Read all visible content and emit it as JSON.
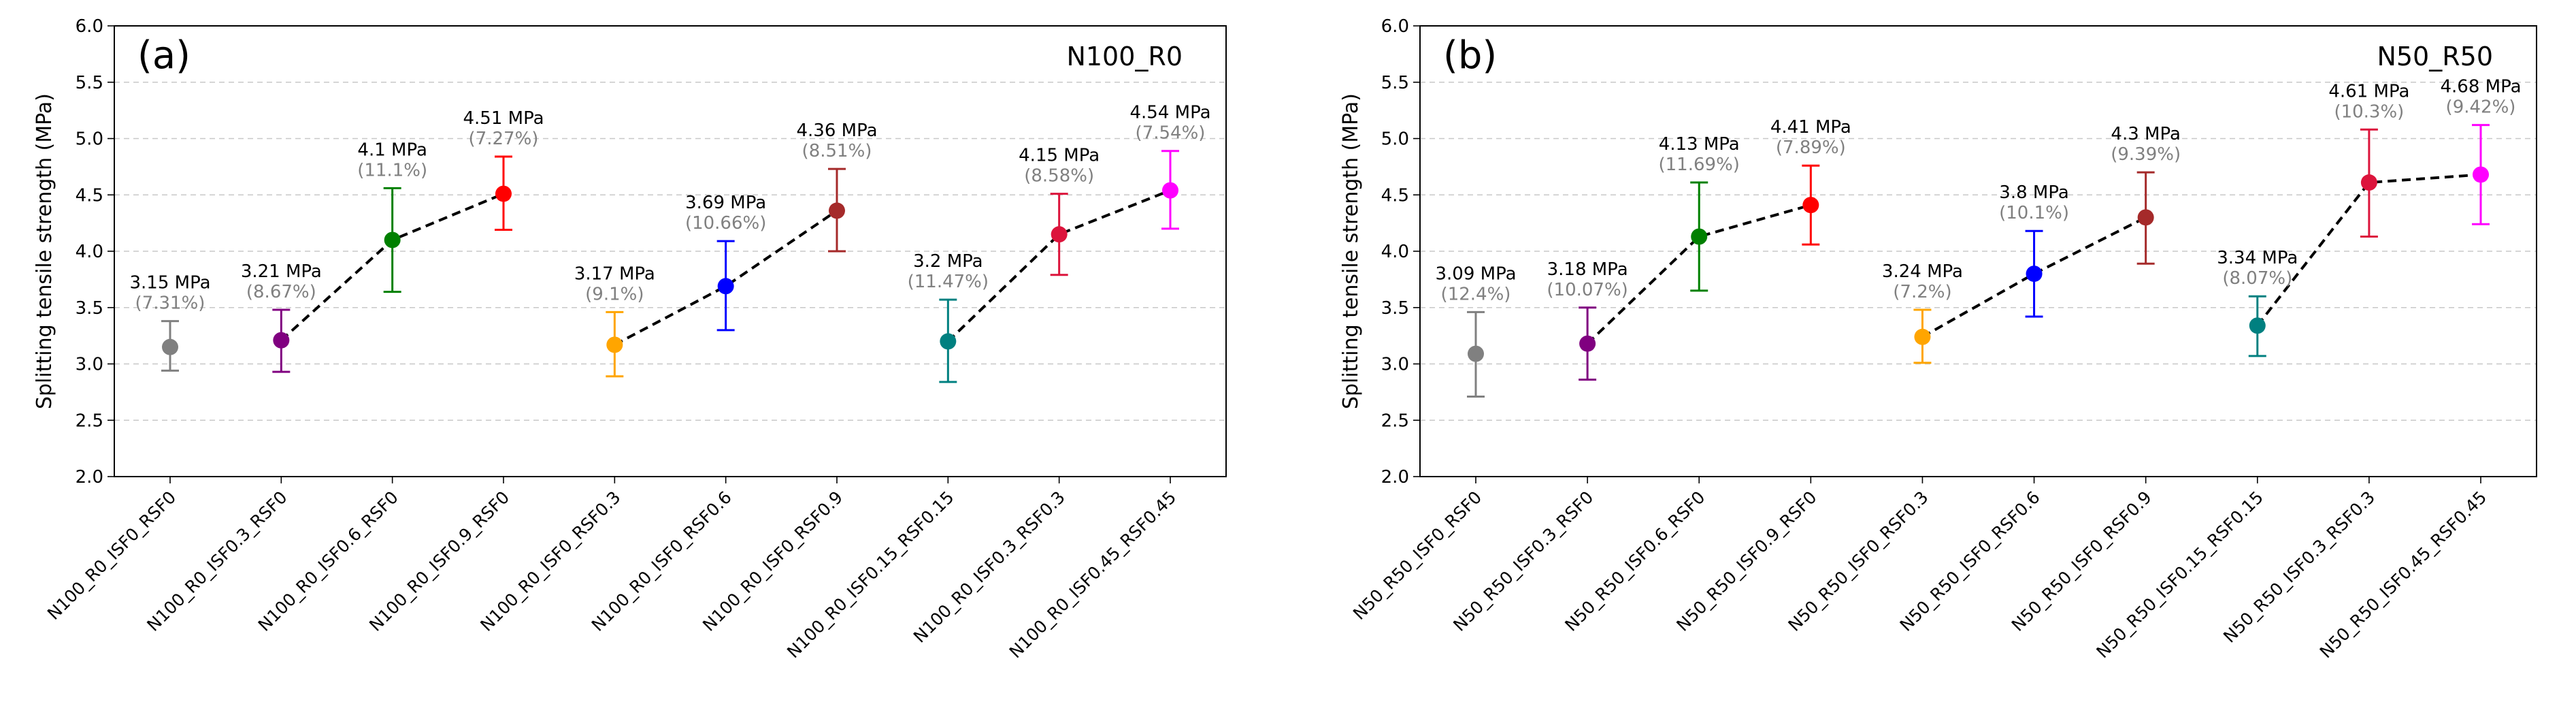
{
  "chart_data": [
    {
      "type": "scatter",
      "panel_label": "(a)",
      "corner_label": "N100_R0",
      "title": "",
      "xlabel": "",
      "ylabel": "Splitting tensile strength (MPa)",
      "ylim": [
        2.0,
        6.0
      ],
      "yticks": [
        "2.0",
        "2.5",
        "3.0",
        "3.5",
        "4.0",
        "4.5",
        "5.0",
        "5.5",
        "6.0"
      ],
      "grid": "y-dashed",
      "categories": [
        "N100_R0_ISF0_RSF0",
        "N100_R0_ISF0.3_RSF0",
        "N100_R0_ISF0.6_RSF0",
        "N100_R0_ISF0.9_RSF0",
        "N100_R0_ISF0_RSF0.3",
        "N100_R0_ISF0_RSF0.6",
        "N100_R0_ISF0_RSF0.9",
        "N100_R0_ISF0.15_RSF0.15",
        "N100_R0_ISF0.3_RSF0.3",
        "N100_R0_ISF0.45_RSF0.45"
      ],
      "values": [
        3.15,
        3.21,
        4.1,
        4.51,
        3.17,
        3.69,
        4.36,
        3.2,
        4.15,
        4.54
      ],
      "err_low": [
        2.94,
        2.93,
        3.64,
        4.19,
        2.89,
        3.3,
        4.0,
        2.84,
        3.79,
        4.2
      ],
      "err_high": [
        3.38,
        3.48,
        4.56,
        4.84,
        3.46,
        4.09,
        4.73,
        3.57,
        4.51,
        4.89
      ],
      "value_labels": [
        "3.15 MPa",
        "3.21 MPa",
        "4.1 MPa",
        "4.51 MPa",
        "3.17 MPa",
        "3.69 MPa",
        "4.36 MPa",
        "3.2 MPa",
        "4.15 MPa",
        "4.54 MPa"
      ],
      "cov_labels": [
        "(7.31%)",
        "(8.67%)",
        "(11.1%)",
        "(7.27%)",
        "(9.1%)",
        "(10.66%)",
        "(8.51%)",
        "(11.47%)",
        "(8.58%)",
        "(7.54%)"
      ],
      "colors": [
        "#808080",
        "#800080",
        "#008000",
        "#ff0000",
        "#ffa500",
        "#0000ff",
        "#a52a2a",
        "#008080",
        "#dc143c",
        "#ff00ff"
      ],
      "dashed_groups": [
        [
          1,
          2,
          3
        ],
        [
          4,
          5,
          6
        ],
        [
          7,
          8,
          9
        ]
      ]
    },
    {
      "type": "scatter",
      "panel_label": "(b)",
      "corner_label": "N50_R50",
      "title": "",
      "xlabel": "",
      "ylabel": "Splitting tensile strength (MPa)",
      "ylim": [
        2.0,
        6.0
      ],
      "yticks": [
        "2.0",
        "2.5",
        "3.0",
        "3.5",
        "4.0",
        "4.5",
        "5.0",
        "5.5",
        "6.0"
      ],
      "grid": "y-dashed",
      "categories": [
        "N50_R50_ISF0_RSF0",
        "N50_R50_ISF0.3_RSF0",
        "N50_R50_ISF0.6_RSF0",
        "N50_R50_ISF0.9_RSF0",
        "N50_R50_ISF0_RSF0.3",
        "N50_R50_ISF0_RSF0.6",
        "N50_R50_ISF0_RSF0.9",
        "N50_R50_ISF0.15_RSF0.15",
        "N50_R50_ISF0.3_RSF0.3",
        "N50_R50_ISF0.45_RSF0.45"
      ],
      "values": [
        3.09,
        3.18,
        4.13,
        4.41,
        3.24,
        3.8,
        4.3,
        3.34,
        4.61,
        4.68
      ],
      "err_low": [
        2.71,
        2.86,
        3.65,
        4.06,
        3.01,
        3.42,
        3.89,
        3.07,
        4.13,
        4.24
      ],
      "err_high": [
        3.46,
        3.5,
        4.61,
        4.76,
        3.48,
        4.18,
        4.7,
        3.6,
        5.08,
        5.12
      ],
      "value_labels": [
        "3.09 MPa",
        "3.18 MPa",
        "4.13 MPa",
        "4.41 MPa",
        "3.24 MPa",
        "3.8 MPa",
        "4.3 MPa",
        "3.34 MPa",
        "4.61 MPa",
        "4.68 MPa"
      ],
      "cov_labels": [
        "(12.4%)",
        "(10.07%)",
        "(11.69%)",
        "(7.89%)",
        "(7.2%)",
        "(10.1%)",
        "(9.39%)",
        "(8.07%)",
        "(10.3%)",
        "(9.42%)"
      ],
      "colors": [
        "#808080",
        "#800080",
        "#008000",
        "#ff0000",
        "#ffa500",
        "#0000ff",
        "#a52a2a",
        "#008080",
        "#dc143c",
        "#ff00ff"
      ],
      "dashed_groups": [
        [
          1,
          2,
          3
        ],
        [
          4,
          5,
          6
        ],
        [
          7,
          8,
          9
        ]
      ]
    }
  ]
}
